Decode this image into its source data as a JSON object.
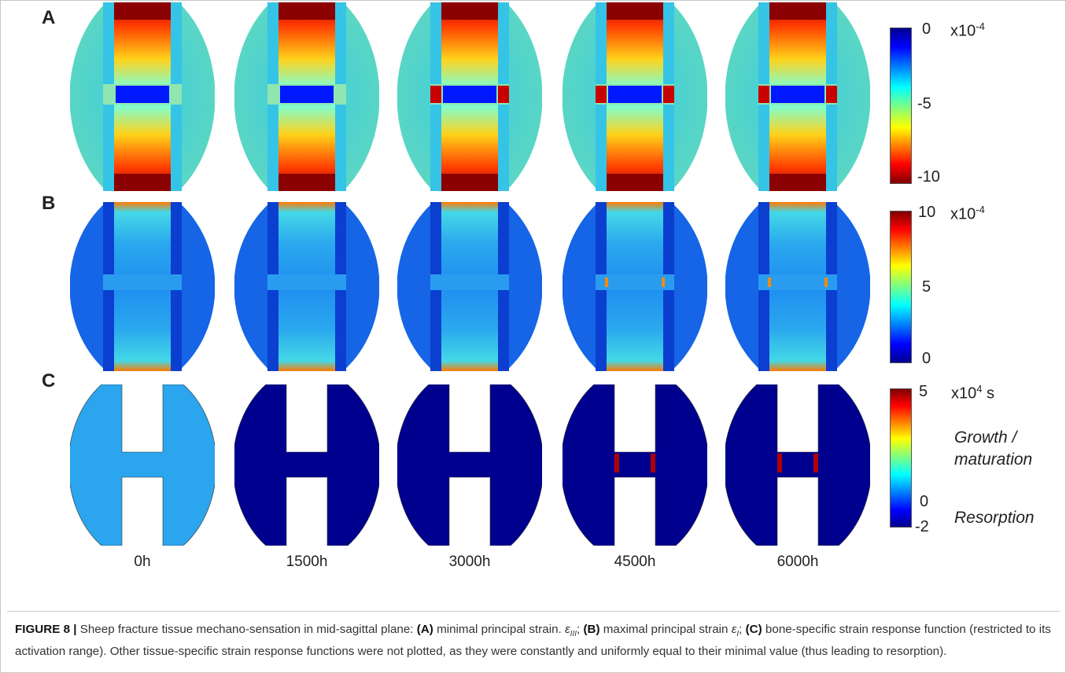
{
  "panels": [
    {
      "label": "A",
      "colorbar": {
        "ticks": [
          "0",
          "-5",
          "-10"
        ],
        "unit_base": "x10",
        "unit_exp": "-4",
        "unit_suffix": ""
      }
    },
    {
      "label": "B",
      "colorbar": {
        "ticks": [
          "10",
          "5",
          "0"
        ],
        "unit_base": "x10",
        "unit_exp": "-4",
        "unit_suffix": ""
      }
    },
    {
      "label": "C",
      "colorbar": {
        "ticks": [
          "5",
          "0",
          "-2"
        ],
        "unit_base": "x10",
        "unit_exp": "4",
        "unit_suffix": " s"
      },
      "notes": {
        "growth": "Growth /",
        "maturation": "maturation",
        "resorption": "Resorption"
      }
    }
  ],
  "time_points": [
    "0h",
    "1500h",
    "3000h",
    "4500h",
    "6000h"
  ],
  "colors": {
    "jet_dark_blue": "#00008f",
    "jet_light_blue": "#2aa5ee",
    "jet_dark_red": "#800000",
    "caption_accent": "#c0392b",
    "frame": "#c7c7c7"
  },
  "caption": {
    "figure_no": "FIGURE 8 |",
    "t1": " Sheep fracture tissue mechano-sensation in mid-sagittal plane: ",
    "a_tag": "(A)",
    "t2": " minimal principal strain. ",
    "eps3": "ε",
    "eps3_sub": "III",
    "t3": "; ",
    "b_tag": "(B)",
    "t4": " maximal principal strain ",
    "eps1": "ε",
    "eps1_sub": "I",
    "t5": "; ",
    "c_tag": "(C)",
    "t6": " bone-specific strain response function (restricted to its activation range). Other tissue-specific strain response functions were not plotted, as they were constantly and uniformly equal to their minimal value (thus leading to resorption)."
  }
}
